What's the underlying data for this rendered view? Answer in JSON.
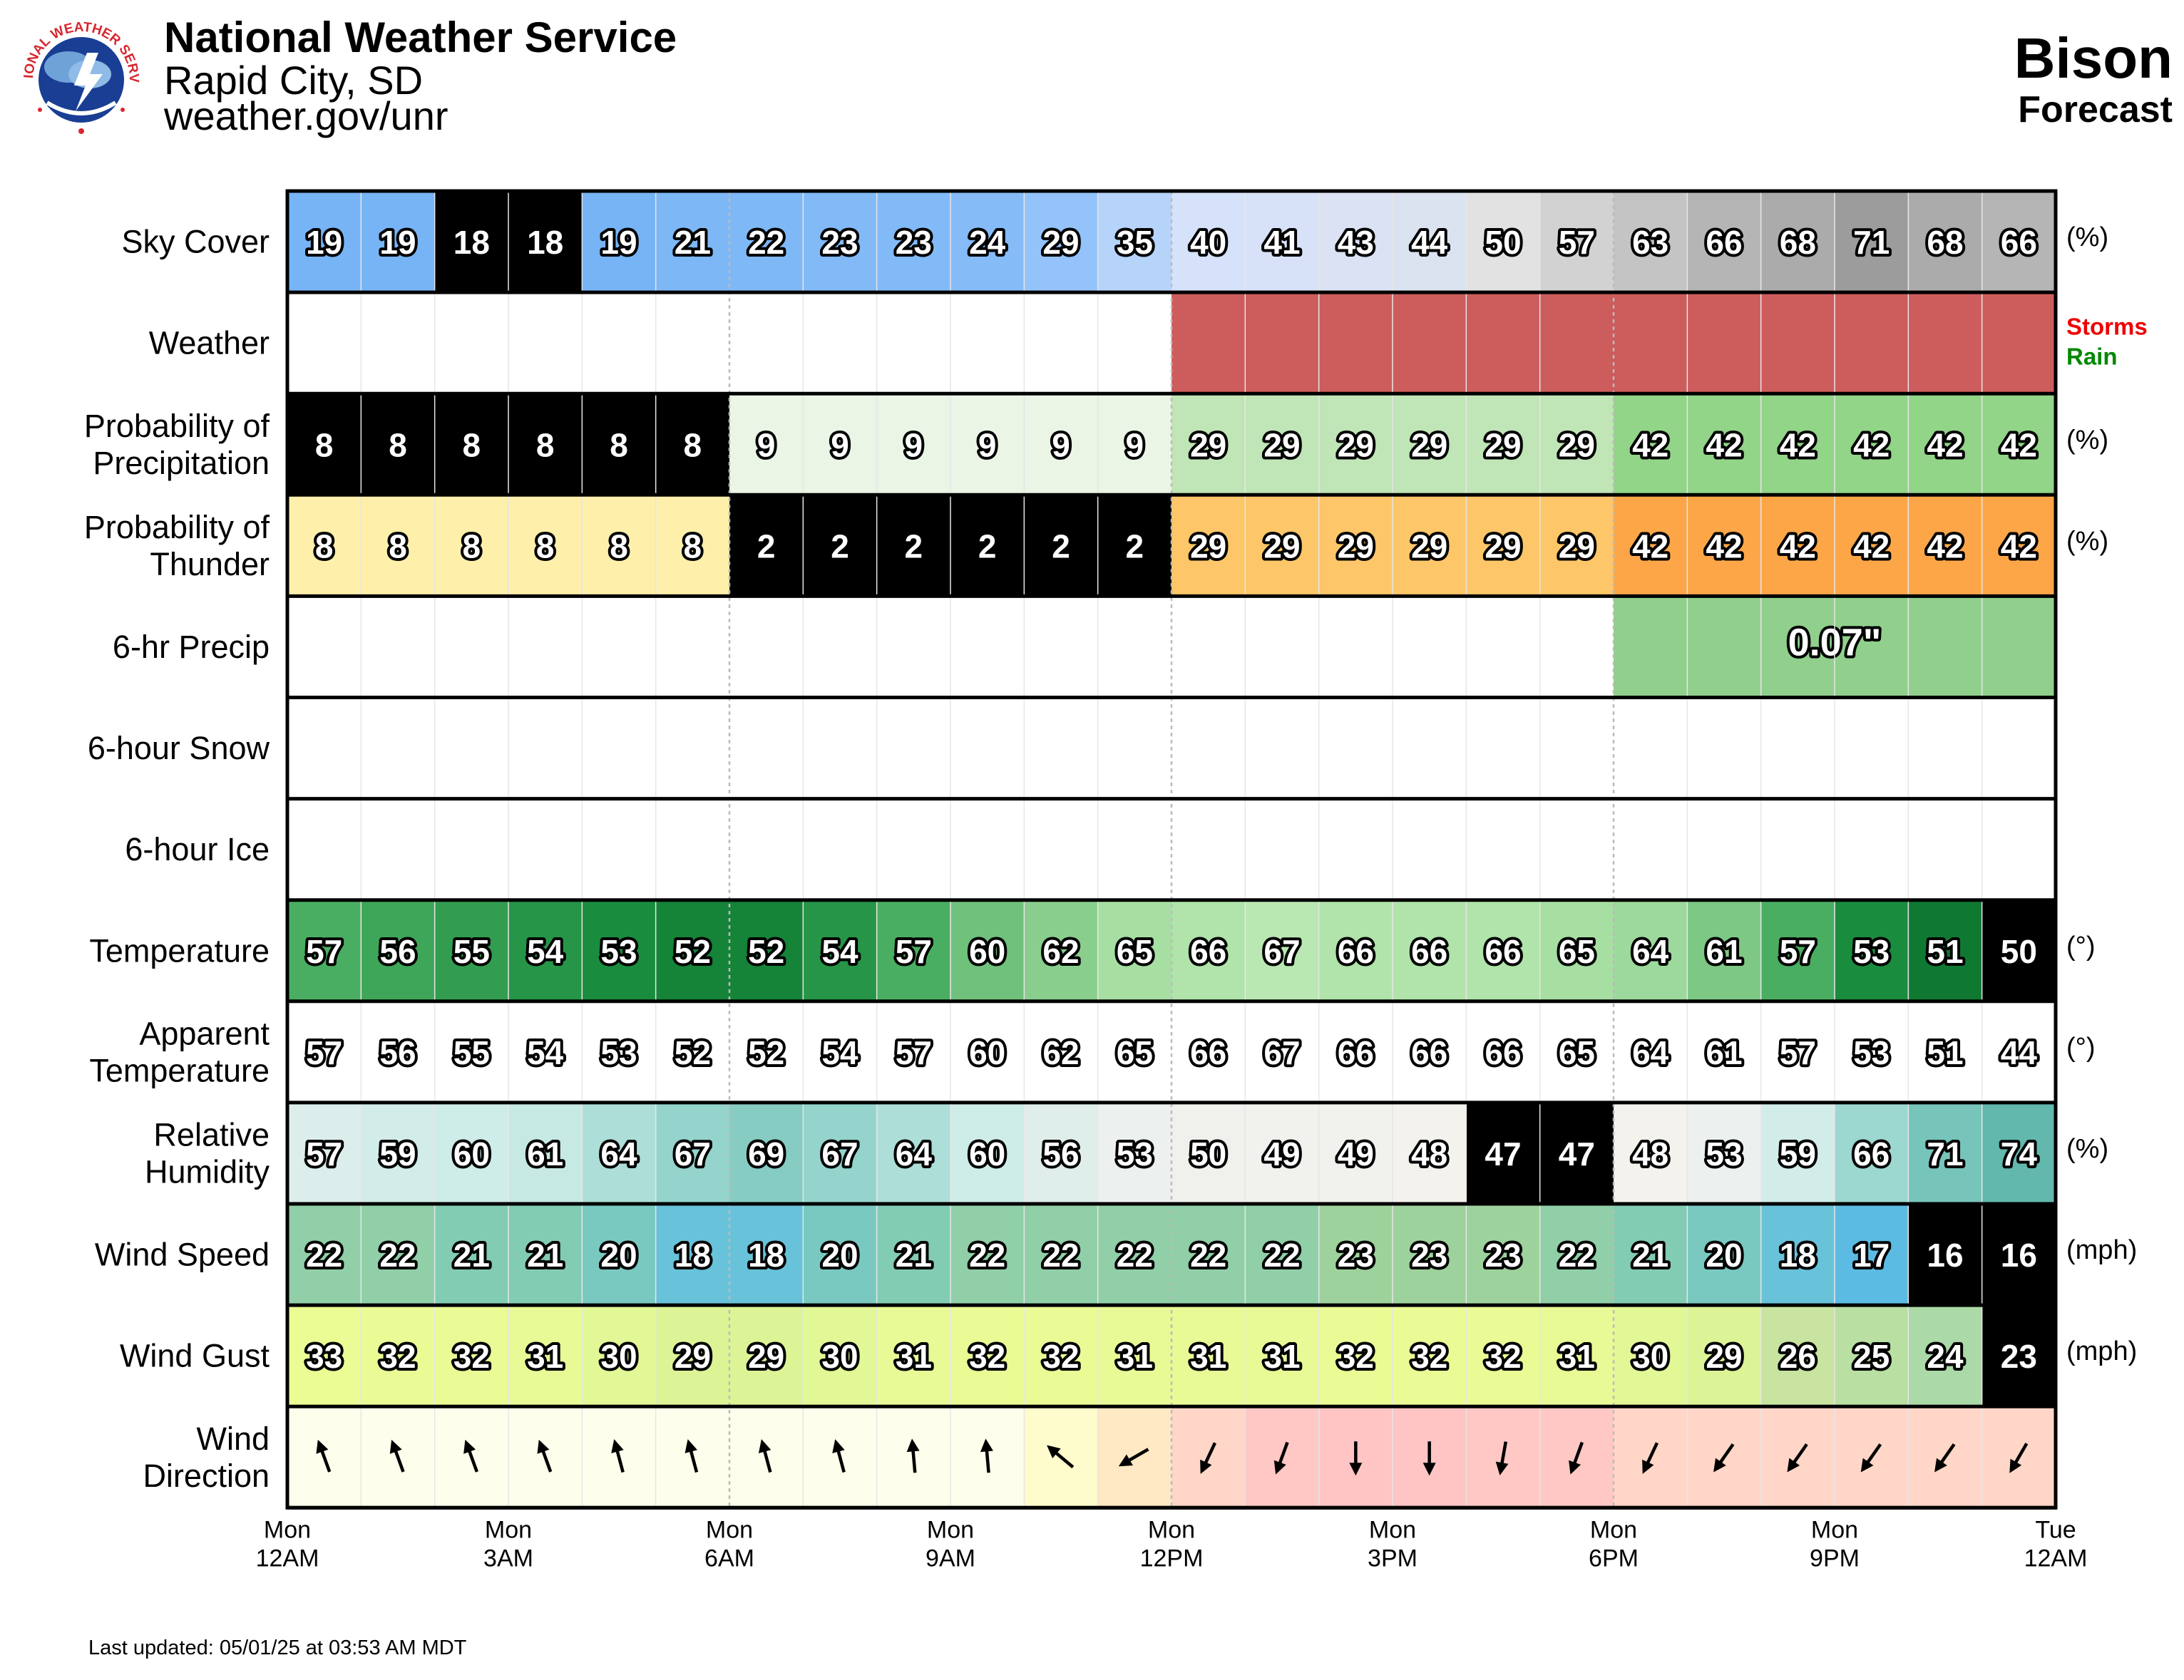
{
  "header": {
    "org": "National Weather Service",
    "office": "Rapid City, SD",
    "url": "weather.gov/unr",
    "location": "Bison",
    "product": "Forecast",
    "logo_text": "NATIONAL WEATHER SERVICE"
  },
  "footer": {
    "updated": "Last updated: 05/01/25 at 03:53 AM MDT"
  },
  "weather_legend": [
    {
      "label": "Storms",
      "color": "#ee0000"
    },
    {
      "label": "Rain",
      "color": "#008800"
    }
  ],
  "chart_data": {
    "type": "table",
    "x_ticks": [
      {
        "day": "Mon",
        "time": "12AM"
      },
      {
        "day": "Mon",
        "time": "3AM"
      },
      {
        "day": "Mon",
        "time": "6AM"
      },
      {
        "day": "Mon",
        "time": "9AM"
      },
      {
        "day": "Mon",
        "time": "12PM"
      },
      {
        "day": "Mon",
        "time": "3PM"
      },
      {
        "day": "Mon",
        "time": "6PM"
      },
      {
        "day": "Mon",
        "time": "9PM"
      },
      {
        "day": "Tue",
        "time": "12AM"
      }
    ],
    "rows": [
      {
        "id": "sky",
        "label": [
          "Sky Cover"
        ],
        "unit": "(%)",
        "values": [
          19,
          19,
          18,
          18,
          19,
          21,
          22,
          23,
          23,
          24,
          29,
          35,
          40,
          41,
          43,
          44,
          50,
          57,
          63,
          66,
          68,
          71,
          68,
          66
        ]
      },
      {
        "id": "weather",
        "label": [
          "Weather"
        ],
        "unit": "",
        "values": [
          "",
          "",
          "",
          "",
          "",
          "",
          "",
          "",
          "",
          "",
          "",
          "",
          "Storms",
          "Storms",
          "Storms",
          "Storms",
          "Storms",
          "Storms",
          "Storms",
          "Storms",
          "Storms",
          "Storms",
          "Storms",
          "Storms"
        ]
      },
      {
        "id": "pop",
        "label": [
          "Probability of",
          "Precipitation"
        ],
        "unit": "(%)",
        "values": [
          8,
          8,
          8,
          8,
          8,
          8,
          9,
          9,
          9,
          9,
          9,
          9,
          29,
          29,
          29,
          29,
          29,
          29,
          42,
          42,
          42,
          42,
          42,
          42
        ]
      },
      {
        "id": "thunder",
        "label": [
          "Probability of",
          "Thunder"
        ],
        "unit": "(%)",
        "values": [
          8,
          8,
          8,
          8,
          8,
          8,
          2,
          2,
          2,
          2,
          2,
          2,
          29,
          29,
          29,
          29,
          29,
          29,
          42,
          42,
          42,
          42,
          42,
          42
        ]
      },
      {
        "id": "qpf",
        "label": [
          "6-hr Precip"
        ],
        "unit": "",
        "blocks": [
          {
            "start": 18,
            "end": 24,
            "value": "0.07\""
          }
        ]
      },
      {
        "id": "snow",
        "label": [
          "6-hour Snow"
        ],
        "unit": "",
        "blocks": []
      },
      {
        "id": "ice",
        "label": [
          "6-hour Ice"
        ],
        "unit": "",
        "blocks": []
      },
      {
        "id": "temp",
        "label": [
          "Temperature"
        ],
        "unit": "(°)",
        "values": [
          57,
          56,
          55,
          54,
          53,
          52,
          52,
          54,
          57,
          60,
          62,
          65,
          66,
          67,
          66,
          66,
          66,
          65,
          64,
          61,
          57,
          53,
          51,
          50
        ]
      },
      {
        "id": "apparent",
        "label": [
          "Apparent",
          "Temperature"
        ],
        "unit": "(°)",
        "values": [
          57,
          56,
          55,
          54,
          53,
          52,
          52,
          54,
          57,
          60,
          62,
          65,
          66,
          67,
          66,
          66,
          66,
          65,
          64,
          61,
          57,
          53,
          51,
          44
        ]
      },
      {
        "id": "rh",
        "label": [
          "Relative",
          "Humidity"
        ],
        "unit": "(%)",
        "values": [
          57,
          59,
          60,
          61,
          64,
          67,
          69,
          67,
          64,
          60,
          56,
          53,
          50,
          49,
          49,
          48,
          47,
          47,
          48,
          53,
          59,
          66,
          71,
          74
        ]
      },
      {
        "id": "wspd",
        "label": [
          "Wind Speed"
        ],
        "unit": "(mph)",
        "values": [
          22,
          22,
          21,
          21,
          20,
          18,
          18,
          20,
          21,
          22,
          22,
          22,
          22,
          22,
          23,
          23,
          23,
          22,
          21,
          20,
          18,
          17,
          16,
          16
        ]
      },
      {
        "id": "gust",
        "label": [
          "Wind Gust"
        ],
        "unit": "(mph)",
        "values": [
          33,
          32,
          32,
          31,
          30,
          29,
          29,
          30,
          31,
          32,
          32,
          31,
          31,
          31,
          32,
          32,
          32,
          31,
          30,
          29,
          26,
          25,
          24,
          23
        ]
      },
      {
        "id": "wdir",
        "label": [
          "Wind",
          "Direction"
        ],
        "unit": "",
        "values": [
          160,
          160,
          160,
          160,
          165,
          165,
          165,
          165,
          175,
          175,
          130,
          60,
          25,
          20,
          0,
          0,
          10,
          20,
          25,
          35,
          35,
          35,
          35,
          30
        ]
      }
    ]
  }
}
